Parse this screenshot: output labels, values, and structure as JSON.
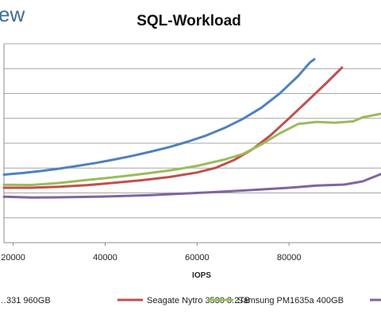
{
  "logo": {
    "text": "ew",
    "color": "#3d6f8e"
  },
  "chart_data": {
    "type": "line",
    "title": "SQL-Workload",
    "xlabel": "IOPS",
    "ylabel": "",
    "x_ticks": [
      20000,
      40000,
      60000,
      80000
    ],
    "x_tick_labels": [
      "20000",
      "40000",
      "60000",
      "80000"
    ],
    "xlim": [
      18000,
      100000
    ],
    "ylim": [
      0,
      1
    ],
    "y_tick_count": 9,
    "grid": true,
    "legend_position": "bottom",
    "series": [
      {
        "name": "…331 960GB",
        "color": "#4f81bd",
        "points": [
          [
            18000,
            0.342
          ],
          [
            22000,
            0.35
          ],
          [
            26000,
            0.36
          ],
          [
            30000,
            0.372
          ],
          [
            34000,
            0.386
          ],
          [
            38000,
            0.401
          ],
          [
            42000,
            0.418
          ],
          [
            46000,
            0.437
          ],
          [
            50000,
            0.458
          ],
          [
            54000,
            0.481
          ],
          [
            58000,
            0.508
          ],
          [
            62000,
            0.539
          ],
          [
            66000,
            0.577
          ],
          [
            70000,
            0.623
          ],
          [
            74000,
            0.679
          ],
          [
            78000,
            0.751
          ],
          [
            82000,
            0.838
          ],
          [
            84500,
            0.905
          ],
          [
            85500,
            0.922
          ]
        ]
      },
      {
        "name": "Seagate Nytro 3530 3.2TB",
        "color": "#c0504d",
        "points": [
          [
            18000,
            0.276
          ],
          [
            24000,
            0.276
          ],
          [
            30000,
            0.281
          ],
          [
            36000,
            0.289
          ],
          [
            42000,
            0.301
          ],
          [
            48000,
            0.314
          ],
          [
            54000,
            0.33
          ],
          [
            60000,
            0.353
          ],
          [
            64000,
            0.376
          ],
          [
            68000,
            0.415
          ],
          [
            72000,
            0.469
          ],
          [
            76000,
            0.54
          ],
          [
            80000,
            0.625
          ],
          [
            84000,
            0.712
          ],
          [
            88000,
            0.8
          ],
          [
            91500,
            0.88
          ]
        ]
      },
      {
        "name": "Samsung PM1635a 400GB",
        "color": "#9bbb59",
        "points": [
          [
            18000,
            0.291
          ],
          [
            24000,
            0.29
          ],
          [
            30000,
            0.3
          ],
          [
            36000,
            0.315
          ],
          [
            42000,
            0.329
          ],
          [
            48000,
            0.345
          ],
          [
            54000,
            0.363
          ],
          [
            60000,
            0.386
          ],
          [
            66000,
            0.418
          ],
          [
            70000,
            0.446
          ],
          [
            74000,
            0.494
          ],
          [
            78000,
            0.55
          ],
          [
            82000,
            0.597
          ],
          [
            86000,
            0.607
          ],
          [
            90000,
            0.603
          ],
          [
            94000,
            0.61
          ],
          [
            96000,
            0.63
          ],
          [
            100000,
            0.648
          ]
        ]
      },
      {
        "name": "",
        "color": "#8064a2",
        "points": [
          [
            18000,
            0.231
          ],
          [
            24000,
            0.227
          ],
          [
            30000,
            0.228
          ],
          [
            40000,
            0.232
          ],
          [
            50000,
            0.239
          ],
          [
            60000,
            0.25
          ],
          [
            70000,
            0.262
          ],
          [
            80000,
            0.276
          ],
          [
            86000,
            0.287
          ],
          [
            92000,
            0.292
          ],
          [
            96000,
            0.308
          ],
          [
            100000,
            0.345
          ]
        ]
      }
    ]
  }
}
